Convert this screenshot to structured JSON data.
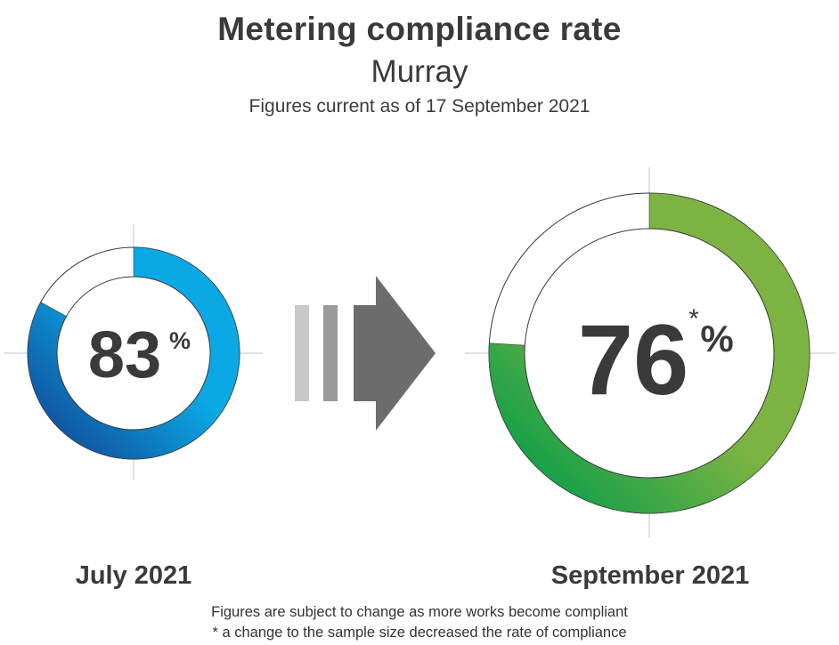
{
  "title": "Metering compliance rate",
  "subtitle": "Murray",
  "as_of": "Figures current as of 17 September 2021",
  "chart_data": [
    {
      "type": "pie",
      "period": "July 2021",
      "value": 83,
      "value_label": "83",
      "unit": "%",
      "asterisk": "",
      "colors": [
        "#123a8a",
        "#0aa8e4"
      ]
    },
    {
      "type": "pie",
      "period": "September 2021",
      "value": 76,
      "value_label": "76",
      "unit": "%",
      "asterisk": "*",
      "colors": [
        "#0b9e4a",
        "#7cb342"
      ]
    }
  ],
  "notes": [
    "Figures are subject to change as more works become compliant",
    "* a change to the sample size decreased the rate of compliance"
  ]
}
